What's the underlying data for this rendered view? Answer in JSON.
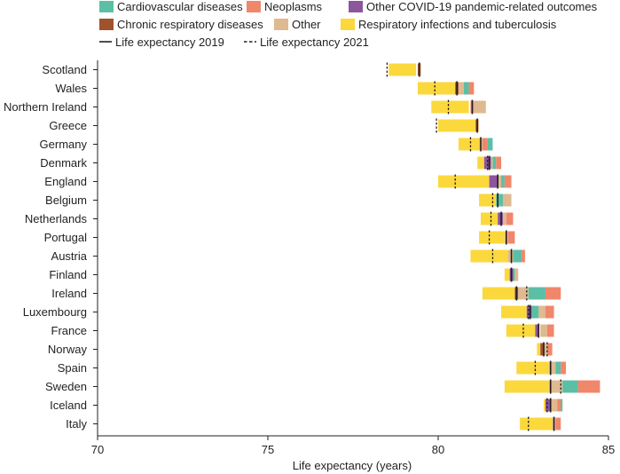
{
  "chart_data": {
    "type": "bar",
    "orientation": "horizontal",
    "stacked": true,
    "title": "",
    "xlabel": "Life expectancy (years)",
    "ylabel": "",
    "xlim": [
      70,
      85
    ],
    "xticks": [
      70,
      75,
      80,
      85
    ],
    "grid": false,
    "legend_position": "top",
    "legend": {
      "patches": [
        {
          "name": "Cardiovascular diseases",
          "color": "#5bbfa5"
        },
        {
          "name": "Neoplasms",
          "color": "#f0876a"
        },
        {
          "name": "Other COVID-19 pandemic-related outcomes",
          "color": "#8c559d"
        },
        {
          "name": "Chronic respiratory diseases",
          "color": "#a0522d"
        },
        {
          "name": "Other",
          "color": "#dfb990"
        },
        {
          "name": "Respiratory infections and tuberculosis",
          "color": "#fbd83c"
        }
      ],
      "lines": [
        {
          "name": "Life expectancy 2019",
          "style": "solid"
        },
        {
          "name": "Life expectancy 2021",
          "style": "dashed"
        }
      ]
    },
    "categories": [
      "Scotland",
      "Wales",
      "Northern Ireland",
      "Greece",
      "Germany",
      "Denmark",
      "England",
      "Belgium",
      "Netherlands",
      "Portugal",
      "Austria",
      "Finland",
      "Ireland",
      "Luxembourg",
      "France",
      "Norway",
      "Spain",
      "Sweden",
      "Iceland",
      "Italy"
    ],
    "life_expectancy_2019": [
      79.45,
      80.55,
      81.0,
      81.15,
      81.25,
      81.5,
      81.75,
      81.75,
      81.85,
      82.0,
      82.15,
      82.15,
      82.3,
      82.7,
      82.95,
      83.1,
      83.3,
      83.3,
      83.3,
      83.4
    ],
    "life_expectancy_2021": [
      78.5,
      79.9,
      80.3,
      79.95,
      80.95,
      81.45,
      80.5,
      81.6,
      81.55,
      81.5,
      81.6,
      82.15,
      82.6,
      82.65,
      82.5,
      83.2,
      82.85,
      83.6,
      83.2,
      82.65
    ],
    "series": [
      {
        "name": "Respiratory infections and tuberculosis",
        "color": "#fbd83c",
        "ranges": [
          [
            78.55,
            79.35
          ],
          [
            79.4,
            80.5
          ],
          [
            79.8,
            80.9
          ],
          [
            80.0,
            81.1
          ],
          [
            80.6,
            81.2
          ],
          [
            81.15,
            81.35
          ],
          [
            80.0,
            81.5
          ],
          [
            81.2,
            81.7
          ],
          [
            81.25,
            81.75
          ],
          [
            81.2,
            81.95
          ],
          [
            80.95,
            82.05
          ],
          [
            81.95,
            82.1
          ],
          [
            81.3,
            82.25
          ],
          [
            81.85,
            82.6
          ],
          [
            82.0,
            82.85
          ],
          [
            82.9,
            83.0
          ],
          [
            82.3,
            83.25
          ],
          [
            81.95,
            83.25
          ],
          [
            83.1,
            83.15
          ],
          [
            82.4,
            83.35
          ]
        ]
      },
      {
        "name": "Chronic respiratory diseases",
        "color": "#a0522d",
        "ranges": [
          [
            79.4,
            79.45
          ],
          [
            80.5,
            80.6
          ],
          [],
          [
            81.1,
            81.15
          ],
          [],
          [],
          [],
          [],
          [],
          [],
          [],
          [],
          [
            82.25,
            82.35
          ],
          [],
          [],
          [
            83.0,
            83.1
          ],
          [],
          [],
          [],
          []
        ]
      },
      {
        "name": "Other COVID-19 pandemic-related outcomes",
        "color": "#8c559d",
        "ranges": [
          [],
          [],
          [],
          [],
          [],
          [
            81.35,
            81.55
          ],
          [
            81.5,
            81.75
          ],
          [],
          [
            81.75,
            81.9
          ],
          [],
          [],
          [
            82.1,
            82.2
          ],
          [],
          [
            82.6,
            82.75
          ],
          [
            82.85,
            82.95
          ],
          [],
          [],
          [],
          [
            83.15,
            83.3
          ],
          []
        ]
      },
      {
        "name": "Other",
        "color": "#dfb990",
        "ranges": [
          [
            79.45,
            79.5
          ],
          [
            80.6,
            80.75
          ],
          [
            81.05,
            81.4
          ],
          [
            81.15,
            81.2
          ],
          [
            81.2,
            81.45
          ],
          [
            81.55,
            81.6
          ],
          [
            81.75,
            81.85
          ],
          [
            81.9,
            82.15
          ],
          [
            81.9,
            82.0
          ],
          [
            81.95,
            82.05
          ],
          [
            82.05,
            82.2
          ],
          [
            82.25,
            82.35
          ],
          [
            82.35,
            82.65
          ],
          [
            82.95,
            83.15
          ],
          [
            83.0,
            83.2
          ],
          [
            83.1,
            83.2
          ],
          [
            83.25,
            83.45
          ],
          [
            83.25,
            83.65
          ],
          [
            83.3,
            83.5
          ],
          [
            83.35,
            83.45
          ]
        ]
      },
      {
        "name": "Cardiovascular diseases",
        "color": "#5bbfa5",
        "ranges": [
          [],
          [
            80.75,
            80.9
          ],
          [],
          [],
          [
            81.45,
            81.6
          ],
          [
            81.6,
            81.7
          ],
          [
            81.85,
            81.95
          ],
          [
            81.7,
            81.9
          ],
          [],
          [],
          [
            82.2,
            82.45
          ],
          [
            82.2,
            82.25
          ],
          [
            82.65,
            83.15
          ],
          [
            82.75,
            82.95
          ],
          [],
          [],
          [
            83.45,
            83.6
          ],
          [
            83.65,
            84.1
          ],
          [
            83.5,
            83.65
          ],
          []
        ]
      },
      {
        "name": "Neoplasms",
        "color": "#f0876a",
        "ranges": [
          [],
          [
            80.9,
            81.05
          ],
          [
            80.95,
            81.05
          ],
          [],
          [
            81.3,
            81.45
          ],
          [
            81.7,
            81.85
          ],
          [
            81.95,
            82.15
          ],
          [],
          [
            82.0,
            82.2
          ],
          [
            82.05,
            82.25
          ],
          [
            82.45,
            82.55
          ],
          [],
          [
            83.15,
            83.6
          ],
          [
            83.15,
            83.4
          ],
          [
            83.2,
            83.4
          ],
          [
            83.2,
            83.35
          ],
          [
            83.6,
            83.75
          ],
          [
            84.1,
            84.75
          ],
          [
            83.5,
            83.6
          ],
          [
            83.45,
            83.6
          ]
        ]
      }
    ]
  }
}
